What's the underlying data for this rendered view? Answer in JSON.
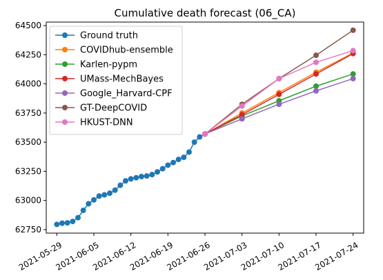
{
  "chart_data": {
    "type": "line",
    "title": "Cumulative death forecast (06_CA)",
    "xlabel": "",
    "ylabel": "",
    "grid": false,
    "legend_position": "top-left",
    "x_ticks": [
      "2021-05-29",
      "2021-06-05",
      "2021-06-12",
      "2021-06-19",
      "2021-06-26",
      "2021-07-03",
      "2021-07-10",
      "2021-07-17",
      "2021-07-24"
    ],
    "y_ticks": [
      62750,
      63000,
      63250,
      63500,
      63750,
      64000,
      64250,
      64500
    ],
    "xlim": [
      "2021-05-27",
      "2021-07-26"
    ],
    "ylim": [
      62720,
      64530
    ],
    "series": [
      {
        "name": "Ground truth",
        "color": "#1f77b4",
        "x": [
          "2021-05-29",
          "2021-05-30",
          "2021-05-31",
          "2021-06-01",
          "2021-06-02",
          "2021-06-03",
          "2021-06-04",
          "2021-06-05",
          "2021-06-06",
          "2021-06-07",
          "2021-06-08",
          "2021-06-09",
          "2021-06-10",
          "2021-06-11",
          "2021-06-12",
          "2021-06-13",
          "2021-06-14",
          "2021-06-15",
          "2021-06-16",
          "2021-06-17",
          "2021-06-18",
          "2021-06-19",
          "2021-06-20",
          "2021-06-21",
          "2021-06-22",
          "2021-06-23",
          "2021-06-24",
          "2021-06-25",
          "2021-06-26"
        ],
        "values": [
          62795,
          62805,
          62808,
          62820,
          62852,
          62915,
          62972,
          63005,
          63038,
          63048,
          63062,
          63088,
          63130,
          63168,
          63185,
          63195,
          63205,
          63210,
          63222,
          63245,
          63272,
          63303,
          63325,
          63352,
          63370,
          63415,
          63500,
          63545,
          63570
        ]
      },
      {
        "name": "COVIDhub-ensemble",
        "color": "#ff7f0e",
        "x": [
          "2021-06-26",
          "2021-07-03",
          "2021-07-10",
          "2021-07-17",
          "2021-07-24"
        ],
        "values": [
          63570,
          63750,
          63925,
          64100,
          64265
        ]
      },
      {
        "name": "Karlen-pypm",
        "color": "#2ca02c",
        "x": [
          "2021-06-26",
          "2021-07-03",
          "2021-07-10",
          "2021-07-17",
          "2021-07-24"
        ],
        "values": [
          63570,
          63725,
          63855,
          63980,
          64085
        ]
      },
      {
        "name": "UMass-MechBayes",
        "color": "#d62728",
        "x": [
          "2021-06-26",
          "2021-07-03",
          "2021-07-10",
          "2021-07-17",
          "2021-07-24"
        ],
        "values": [
          63570,
          63735,
          63910,
          64085,
          64260
        ]
      },
      {
        "name": "Google_Harvard-CPF",
        "color": "#9467bd",
        "x": [
          "2021-06-26",
          "2021-07-03",
          "2021-07-10",
          "2021-07-17",
          "2021-07-24"
        ],
        "values": [
          63570,
          63700,
          63825,
          63940,
          64045
        ]
      },
      {
        "name": "GT-DeepCOVID",
        "color": "#8c564b",
        "x": [
          "2021-06-26",
          "2021-07-03",
          "2021-07-10",
          "2021-07-17",
          "2021-07-24"
        ],
        "values": [
          63570,
          63825,
          64045,
          64245,
          64460
        ]
      },
      {
        "name": "HKUST-DNN",
        "color": "#e377c2",
        "x": [
          "2021-06-26",
          "2021-07-03",
          "2021-07-10",
          "2021-07-17",
          "2021-07-24"
        ],
        "values": [
          63570,
          63810,
          64045,
          64185,
          64285
        ]
      }
    ]
  }
}
